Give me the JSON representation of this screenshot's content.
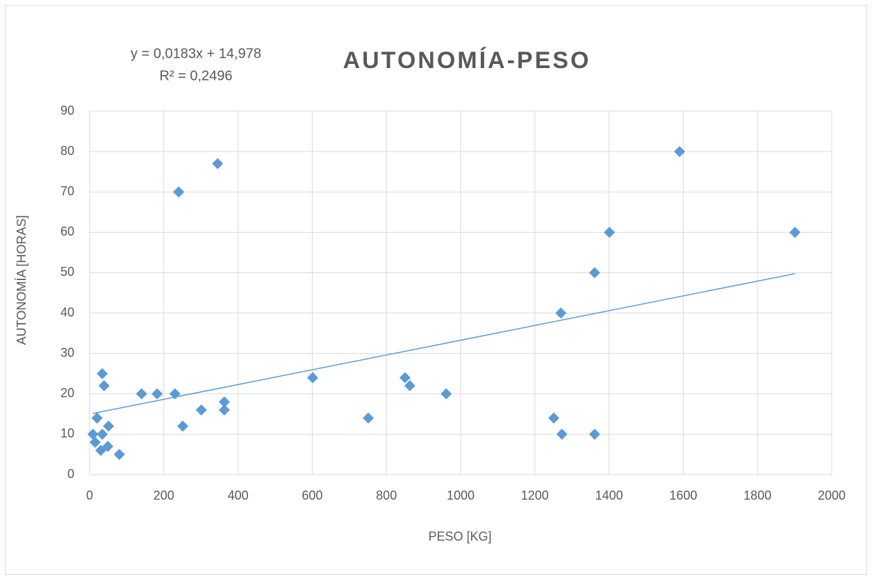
{
  "chart_data": {
    "type": "scatter",
    "title": "AUTONOMÍA-PESO",
    "xlabel": "PESO [KG]",
    "ylabel": "AUTONOMÍA [HORAS]",
    "x": [
      9,
      15,
      20,
      30,
      34,
      34,
      39,
      49,
      51,
      80,
      140,
      182,
      230,
      240,
      251,
      301,
      345,
      363,
      363,
      601,
      751,
      850,
      863,
      961,
      1251,
      1270,
      1273,
      1361,
      1361,
      1401,
      1590,
      1901
    ],
    "values": [
      10,
      8,
      14,
      6,
      10,
      25,
      22,
      7,
      12,
      5,
      20,
      20,
      20,
      70,
      12,
      16,
      77,
      18,
      16,
      24,
      14,
      24,
      22,
      20,
      14,
      40,
      10,
      50,
      10,
      60,
      80,
      60
    ],
    "color": "#5b9bd5",
    "xlim": [
      0,
      2000
    ],
    "xticks": [
      0,
      200,
      400,
      600,
      800,
      1000,
      1200,
      1400,
      1600,
      1800,
      2000
    ],
    "ylim": [
      0,
      90
    ],
    "yticks": [
      0,
      10,
      20,
      30,
      40,
      50,
      60,
      70,
      80,
      90
    ],
    "grid": true,
    "trendline": {
      "equation": "y = 0,0183x + 14,978",
      "r2_label": "R² = 0,2496",
      "slope": 0.0183,
      "intercept": 14.978
    }
  }
}
